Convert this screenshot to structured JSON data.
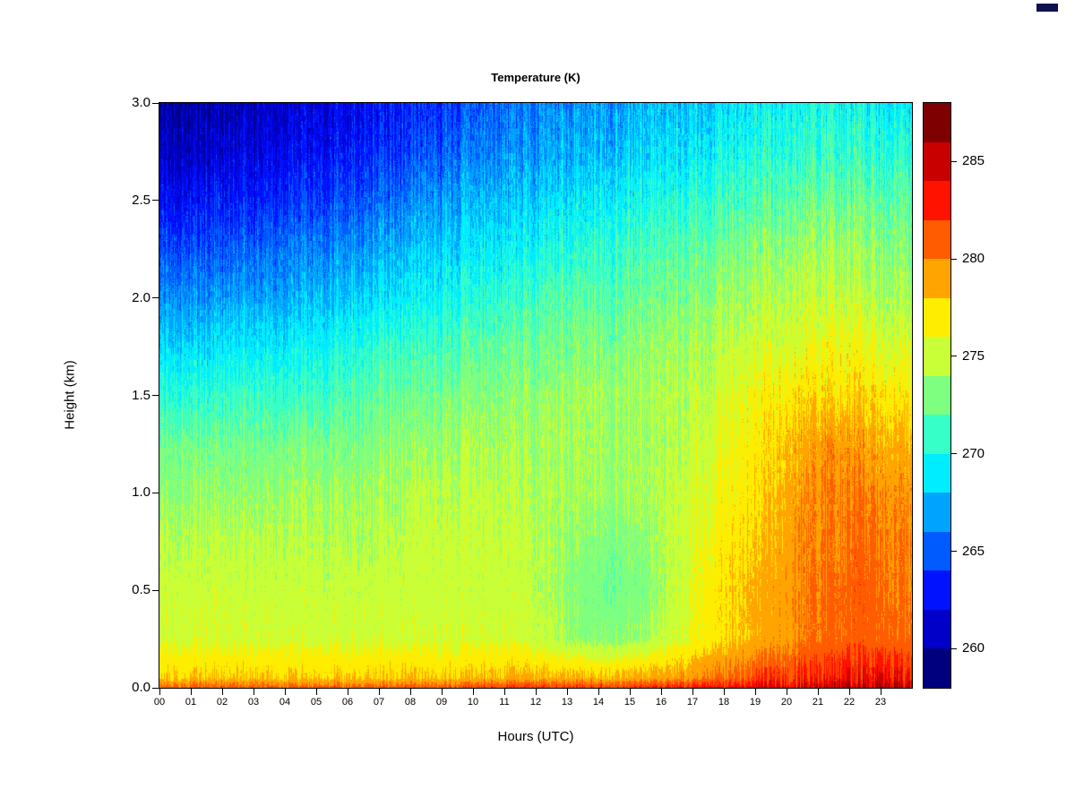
{
  "page": {
    "background": "#ffffff"
  },
  "misc": {
    "corner_mark_color": "#10104f"
  },
  "chart_data": {
    "type": "heatmap",
    "title": "Temperature (K)",
    "xlabel": "Hours (UTC)",
    "ylabel": "Height (km)",
    "grid": false,
    "legend_position": "right",
    "x_range": [
      0,
      24
    ],
    "x_tick_labels": [
      "00",
      "01",
      "02",
      "03",
      "04",
      "05",
      "06",
      "07",
      "08",
      "09",
      "10",
      "11",
      "12",
      "13",
      "14",
      "15",
      "16",
      "17",
      "18",
      "19",
      "20",
      "21",
      "22",
      "23"
    ],
    "y_range": [
      0,
      3
    ],
    "y_tick_labels": [
      "0.0",
      "0.5",
      "1.0",
      "1.5",
      "2.0",
      "2.5",
      "3.0"
    ],
    "hours_utc": [
      0,
      1,
      2,
      3,
      4,
      5,
      6,
      7,
      8,
      9,
      10,
      11,
      12,
      13,
      14,
      15,
      16,
      17,
      18,
      19,
      20,
      21,
      22,
      23
    ],
    "heights_km": [
      0.0,
      0.05,
      0.25,
      0.5,
      0.75,
      1.0,
      1.25,
      1.5,
      1.75,
      2.0,
      2.25,
      2.5,
      2.75,
      3.0
    ],
    "values_K": [
      [
        281,
        281,
        281,
        281,
        281,
        281,
        281,
        281,
        281,
        281.5,
        282,
        282,
        282,
        282,
        282,
        282.5,
        283,
        283,
        283.5,
        284,
        284.5,
        285,
        285,
        285
      ],
      [
        278,
        278,
        278,
        278,
        278,
        278,
        278,
        278,
        278,
        278,
        278.5,
        278.5,
        278.5,
        278.5,
        278.5,
        279,
        279.5,
        280,
        281,
        282,
        282.5,
        283,
        283.5,
        283
      ],
      [
        275.5,
        275.5,
        275.5,
        275.5,
        275.5,
        275.5,
        275.5,
        275.5,
        275.5,
        275.5,
        275.5,
        275.5,
        274.5,
        273.5,
        273.5,
        274,
        275.5,
        277,
        278,
        279,
        280,
        280.5,
        281,
        280.5
      ],
      [
        275,
        275,
        275,
        275,
        275,
        275,
        275,
        275,
        275,
        275,
        275,
        275,
        274,
        273,
        272.5,
        273,
        275,
        277,
        278,
        279,
        280,
        280.5,
        281,
        280
      ],
      [
        274.5,
        274.5,
        274.5,
        274.5,
        274.5,
        274.5,
        274.5,
        274.5,
        275,
        275,
        275,
        275,
        274,
        273.5,
        273,
        273.5,
        275,
        276.5,
        277.5,
        278.5,
        280,
        280,
        280.5,
        280
      ],
      [
        273.5,
        273.5,
        273.5,
        273.5,
        274,
        274,
        274,
        274,
        274.5,
        274.5,
        274.5,
        274.5,
        274,
        274,
        274,
        274,
        275,
        276,
        277,
        278,
        279.5,
        280,
        280,
        279.5
      ],
      [
        272.5,
        272.5,
        272.5,
        272.5,
        273,
        273,
        273,
        273.5,
        273.5,
        274,
        274,
        274,
        274,
        274,
        274,
        274,
        274.5,
        275.5,
        276.5,
        277.5,
        279,
        279.5,
        279,
        278.5
      ],
      [
        270.5,
        270.5,
        271,
        271,
        271,
        271.5,
        272,
        272.5,
        272.5,
        273,
        273,
        273.5,
        273.5,
        274,
        274,
        274,
        274.5,
        275,
        276,
        277,
        277.5,
        277.5,
        277.5,
        277
      ],
      [
        268.5,
        268.5,
        269,
        269,
        269.5,
        270,
        270.5,
        271,
        271,
        271.5,
        272,
        272.5,
        272.5,
        273,
        273,
        273.5,
        274,
        274.5,
        275,
        275.5,
        276,
        276.5,
        276,
        275.5
      ],
      [
        266.5,
        266.5,
        267,
        267,
        267.5,
        268,
        268.5,
        269,
        269.5,
        270,
        270.5,
        271,
        271.5,
        272,
        272,
        272.5,
        273,
        273.5,
        274,
        274.5,
        275,
        275,
        274.5,
        274
      ],
      [
        264.5,
        264.5,
        265,
        265.5,
        266,
        266.5,
        267,
        267.5,
        268,
        268.5,
        269,
        269.5,
        270,
        270.5,
        271,
        271.5,
        272,
        272.5,
        273,
        273.5,
        274,
        274,
        273.5,
        273
      ],
      [
        262.5,
        263,
        263,
        263.5,
        264,
        264.5,
        265,
        265.5,
        266.5,
        267,
        267.5,
        268,
        268.5,
        269,
        269.5,
        270,
        270.5,
        271,
        271.5,
        272,
        272.5,
        272.5,
        272,
        272
      ],
      [
        261,
        261,
        261.5,
        262,
        262.5,
        263,
        263.5,
        264,
        264.5,
        265.5,
        266,
        266.5,
        267,
        267.5,
        268,
        268.5,
        269,
        269.5,
        270,
        270.5,
        271,
        271,
        270.5,
        270.5
      ],
      [
        260,
        260,
        260.5,
        261,
        261.5,
        262,
        262.5,
        263,
        263.5,
        264,
        265,
        265.5,
        266,
        266.5,
        267,
        267.5,
        268,
        268.5,
        269,
        269.5,
        270,
        270,
        269.5,
        269
      ]
    ],
    "colorbar": {
      "min": 258,
      "max": 288,
      "band_step": 2,
      "tick_labels": [
        "260",
        "265",
        "270",
        "275",
        "280",
        "285"
      ],
      "colors_low_to_high": [
        "#00007F",
        "#0000C8",
        "#0012FF",
        "#005BFF",
        "#00A4FF",
        "#00EDFF",
        "#36FFC8",
        "#7FFF7F",
        "#C8FF36",
        "#FFED00",
        "#FFA400",
        "#FF5B00",
        "#FF1200",
        "#C80000",
        "#7F0000"
      ]
    }
  }
}
